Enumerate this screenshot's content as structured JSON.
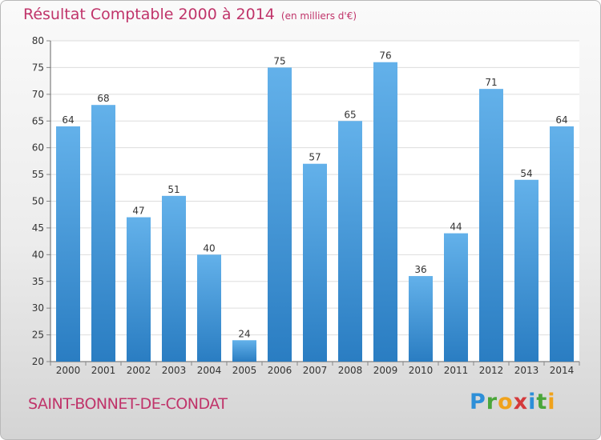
{
  "title": "Résultat Comptable 2000 à 2014",
  "subtitle": "(en milliers d'€)",
  "place": "SAINT-BONNET-DE-CONDAT",
  "logo": {
    "letters": [
      "P",
      "r",
      "o",
      "x",
      "i",
      "t",
      "i"
    ],
    "colors": [
      "#2d8fd8",
      "#4aa63a",
      "#f0a21b",
      "#d4393b",
      "#2d8fd8",
      "#4aa63a",
      "#f0a21b"
    ]
  },
  "colors": {
    "bar_top": "#63b1ea",
    "bar_bottom": "#2a7dc2",
    "title": "#c0346a"
  },
  "chart_data": {
    "type": "bar",
    "title": "Résultat Comptable 2000 à 2014",
    "subtitle": "(en milliers d'€)",
    "categories": [
      "2000",
      "2001",
      "2002",
      "2003",
      "2004",
      "2005",
      "2006",
      "2007",
      "2008",
      "2009",
      "2010",
      "2011",
      "2012",
      "2013",
      "2014"
    ],
    "values": [
      64,
      68,
      47,
      51,
      40,
      24,
      75,
      57,
      65,
      76,
      36,
      44,
      71,
      54,
      64
    ],
    "ylim": [
      20,
      80
    ],
    "yticks": [
      20,
      25,
      30,
      35,
      40,
      45,
      50,
      55,
      60,
      65,
      70,
      75,
      80
    ],
    "grid": true,
    "xlabel": "",
    "ylabel": ""
  }
}
